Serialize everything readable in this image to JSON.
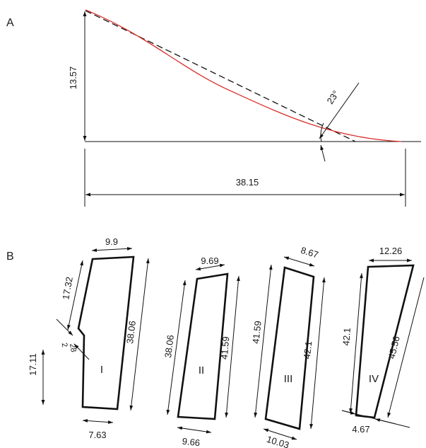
{
  "panels": {
    "a": {
      "letter": "A",
      "height": "13.57",
      "length": "38.15",
      "angle": "23°"
    },
    "b": {
      "letter": "B",
      "left_dim": "17.11",
      "I": {
        "label": "I",
        "top": "9.9",
        "bottom": "7.63",
        "left_upper": "17.32",
        "notch_a": "2",
        "notch_b": "28",
        "right": "38.06"
      },
      "II": {
        "label": "II",
        "top": "9.69",
        "bottom": "9.66",
        "left": "38.06",
        "right": "41.59"
      },
      "III": {
        "label": "III",
        "top": "8.67",
        "bottom": "10.03",
        "left": "41.59",
        "right": "42.1"
      },
      "IV": {
        "label": "IV",
        "top": "12.26",
        "bottom": "4.67",
        "left": "42.1",
        "right": "45.56"
      }
    }
  },
  "colors": {
    "profile_curve": "#d9302c",
    "ink": "#111111"
  }
}
